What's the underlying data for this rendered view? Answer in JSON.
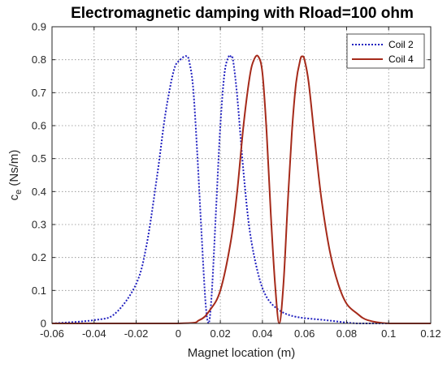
{
  "chart_data": {
    "type": "line",
    "title": "Electromagnetic damping with Rload=100 ohm",
    "xlabel": "Magnet location (m)",
    "ylabel_main": "c",
    "ylabel_sub": "e",
    "ylabel_unit": " (Ns/m)",
    "xlim": [
      -0.06,
      0.12
    ],
    "ylim": [
      0,
      0.9
    ],
    "xticks": [
      -0.06,
      -0.04,
      -0.02,
      0,
      0.02,
      0.04,
      0.06,
      0.08,
      0.1,
      0.12
    ],
    "xtick_labels": [
      "-0.06",
      "-0.04",
      "-0.02",
      "0",
      "0.02",
      "0.04",
      "0.06",
      "0.08",
      "0.1",
      "0.12"
    ],
    "yticks": [
      0,
      0.1,
      0.2,
      0.3,
      0.4,
      0.5,
      0.6,
      0.7,
      0.8,
      0.9
    ],
    "ytick_labels": [
      "0",
      "0.1",
      "0.2",
      "0.3",
      "0.4",
      "0.5",
      "0.6",
      "0.7",
      "0.8",
      "0.9"
    ],
    "grid": true,
    "legend_position": "top-right",
    "series": [
      {
        "name": "Coil 2",
        "color": "#1f1fbf",
        "line_style": "dotted",
        "x": [
          -0.06,
          -0.04,
          -0.03,
          -0.02,
          -0.015,
          -0.01,
          -0.006,
          -0.002,
          0.001,
          0.003,
          0.004,
          0.005,
          0.007,
          0.009,
          0.011,
          0.013,
          0.0145,
          0.016,
          0.018,
          0.02,
          0.022,
          0.024,
          0.025,
          0.026,
          0.028,
          0.031,
          0.034,
          0.038,
          0.042,
          0.048,
          0.056,
          0.07,
          0.085,
          0.1,
          0.12
        ],
        "y": [
          0.0,
          0.01,
          0.03,
          0.12,
          0.24,
          0.45,
          0.64,
          0.77,
          0.8,
          0.81,
          0.81,
          0.8,
          0.72,
          0.52,
          0.28,
          0.06,
          0.0,
          0.1,
          0.35,
          0.6,
          0.76,
          0.81,
          0.81,
          0.8,
          0.69,
          0.46,
          0.28,
          0.15,
          0.08,
          0.04,
          0.02,
          0.01,
          0.0,
          0.0,
          0.0
        ]
      },
      {
        "name": "Coil 4",
        "color": "#a52a1a",
        "line_style": "solid",
        "x": [
          -0.06,
          0.0,
          0.01,
          0.015,
          0.02,
          0.025,
          0.028,
          0.031,
          0.034,
          0.036,
          0.038,
          0.04,
          0.042,
          0.044,
          0.046,
          0.048,
          0.05,
          0.052,
          0.054,
          0.056,
          0.058,
          0.059,
          0.06,
          0.062,
          0.065,
          0.068,
          0.072,
          0.076,
          0.08,
          0.085,
          0.09,
          0.1,
          0.12
        ],
        "y": [
          0.0,
          0.0,
          0.01,
          0.04,
          0.1,
          0.25,
          0.4,
          0.6,
          0.75,
          0.8,
          0.81,
          0.76,
          0.58,
          0.33,
          0.12,
          0.0,
          0.12,
          0.36,
          0.58,
          0.73,
          0.8,
          0.81,
          0.8,
          0.73,
          0.55,
          0.38,
          0.22,
          0.12,
          0.06,
          0.03,
          0.01,
          0.0,
          0.0
        ]
      }
    ]
  }
}
